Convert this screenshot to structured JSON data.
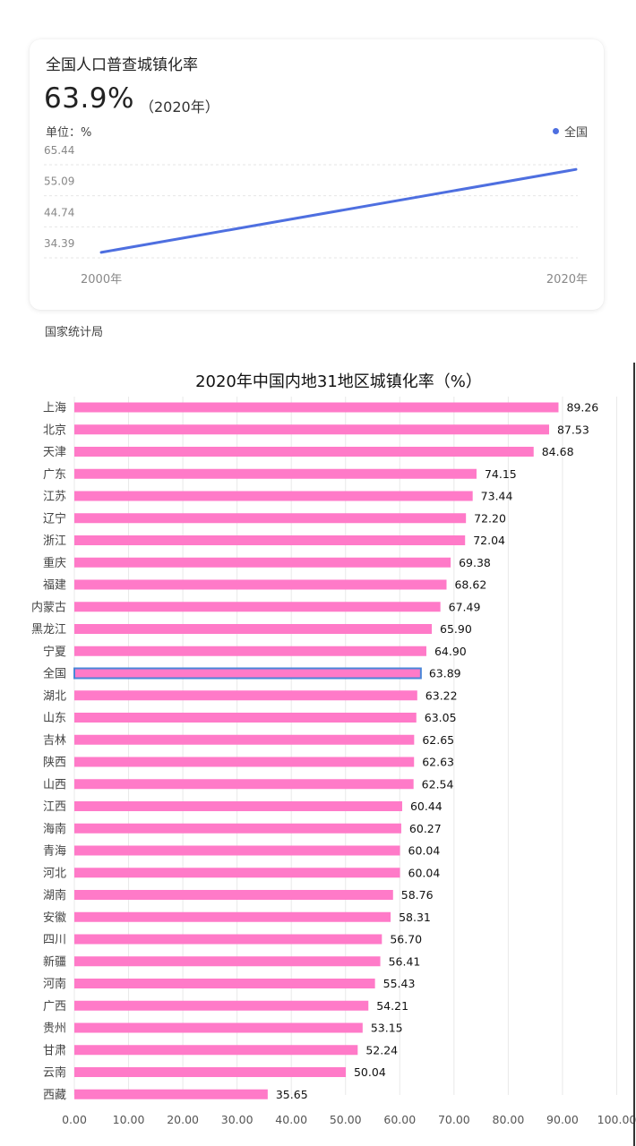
{
  "card": {
    "title": "全国人口普查城镇化率",
    "big_value": "63.9%",
    "big_year": "（2020年）",
    "unit": "单位：%",
    "legend": "全国",
    "line_color": "#4e6fe0"
  },
  "source": "国家统计局",
  "chart_data": [
    {
      "type": "line",
      "x": [
        "2000年",
        "2020年"
      ],
      "series": [
        {
          "name": "全国",
          "values": [
            36.22,
            63.89
          ]
        }
      ],
      "y_ticks": [
        "34.39",
        "44.74",
        "55.09",
        "65.44"
      ],
      "ylim": [
        34.39,
        65.44
      ],
      "grid": true,
      "legend": "top-right"
    },
    {
      "type": "bar",
      "orientation": "horizontal",
      "title": "2020年中国内地31地区城镇化率（%）",
      "categories": [
        "上海",
        "北京",
        "天津",
        "广东",
        "江苏",
        "辽宁",
        "浙江",
        "重庆",
        "福建",
        "内蒙古",
        "黑龙江",
        "宁夏",
        "全国",
        "湖北",
        "山东",
        "吉林",
        "陕西",
        "山西",
        "江西",
        "海南",
        "青海",
        "河北",
        "湖南",
        "安徽",
        "四川",
        "新疆",
        "河南",
        "广西",
        "贵州",
        "甘肃",
        "云南",
        "西藏"
      ],
      "values": [
        89.26,
        87.53,
        84.68,
        74.15,
        73.44,
        72.2,
        72.04,
        69.38,
        68.62,
        67.49,
        65.9,
        64.9,
        63.89,
        63.22,
        63.05,
        62.65,
        62.63,
        62.54,
        60.44,
        60.27,
        60.04,
        60.04,
        58.76,
        58.31,
        56.7,
        56.41,
        55.43,
        54.21,
        53.15,
        52.24,
        50.04,
        35.65
      ],
      "value_labels": [
        "89.26",
        "87.53",
        "84.68",
        "74.15",
        "73.44",
        "72.20",
        "72.04",
        "69.38",
        "68.62",
        "67.49",
        "65.90",
        "64.90",
        "63.89",
        "63.22",
        "63.05",
        "62.65",
        "62.63",
        "62.54",
        "60.44",
        "60.27",
        "60.04",
        "60.04",
        "58.76",
        "58.31",
        "56.70",
        "56.41",
        "55.43",
        "54.21",
        "53.15",
        "52.24",
        "50.04",
        "35.65"
      ],
      "highlight": "全国",
      "x_ticks": [
        "0.00",
        "10.00",
        "20.00",
        "30.00",
        "40.00",
        "50.00",
        "60.00",
        "70.00",
        "80.00",
        "90.00",
        "100.00"
      ],
      "xlim": [
        0,
        100
      ],
      "bar_color": "#ff7ac8",
      "highlight_border": "#4a86d8",
      "grid": true
    }
  ]
}
